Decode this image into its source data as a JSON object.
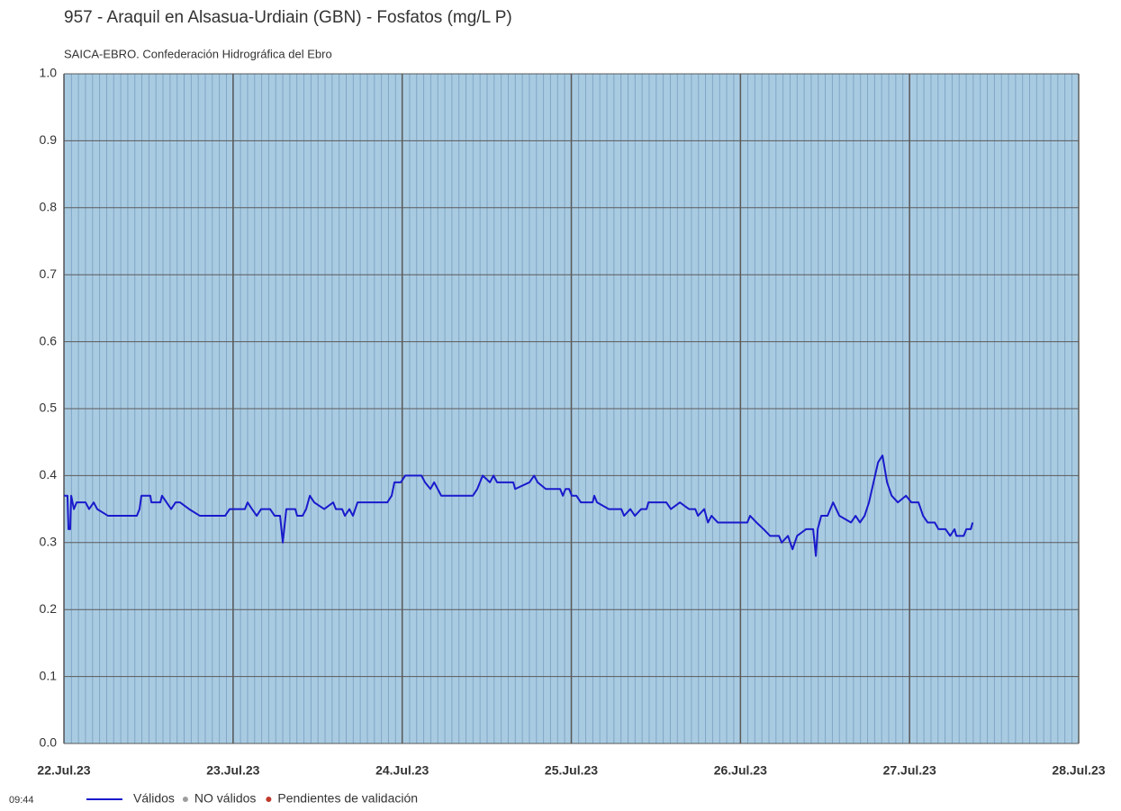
{
  "chart_data": {
    "type": "line",
    "title": "957 - Araquil en Alsasua-Urdiain (GBN) - Fosfatos (mg/L P)",
    "subtitle": "SAICA-EBRO. Confederación Hidrográfica del Ebro",
    "footer_time": "09:44",
    "x": [
      22.0,
      22.021,
      22.027,
      22.037,
      22.043,
      22.059,
      22.075,
      22.128,
      22.149,
      22.176,
      22.197,
      22.261,
      22.431,
      22.447,
      22.458,
      22.511,
      22.517,
      22.57,
      22.58,
      22.607,
      22.634,
      22.66,
      22.687,
      22.74,
      22.804,
      22.953,
      22.98,
      23.07,
      23.086,
      23.112,
      23.14,
      23.166,
      23.219,
      23.246,
      23.278,
      23.294,
      23.315,
      23.368,
      23.379,
      23.411,
      23.432,
      23.454,
      23.48,
      23.539,
      23.592,
      23.608,
      23.645,
      23.661,
      23.688,
      23.709,
      23.736,
      23.912,
      23.938,
      23.954,
      23.992,
      24.018,
      24.114,
      24.135,
      24.167,
      24.189,
      24.21,
      24.231,
      24.418,
      24.444,
      24.476,
      24.519,
      24.54,
      24.561,
      24.657,
      24.668,
      24.753,
      24.78,
      24.801,
      24.849,
      24.934,
      24.95,
      24.966,
      24.987,
      25.003,
      25.03,
      25.057,
      25.126,
      25.136,
      25.152,
      25.222,
      25.296,
      25.312,
      25.349,
      25.376,
      25.413,
      25.445,
      25.456,
      25.562,
      25.589,
      25.642,
      25.696,
      25.733,
      25.749,
      25.786,
      25.808,
      25.829,
      25.866,
      26.041,
      26.057,
      26.095,
      26.137,
      26.175,
      26.228,
      26.244,
      26.281,
      26.308,
      26.335,
      26.388,
      26.43,
      26.446,
      26.457,
      26.478,
      26.515,
      26.548,
      26.585,
      26.654,
      26.681,
      26.707,
      26.734,
      26.76,
      26.787,
      26.814,
      26.84,
      26.867,
      26.894,
      26.931,
      26.979,
      27.011,
      27.053,
      27.08,
      27.107,
      27.149,
      27.171,
      27.213,
      27.24,
      27.266,
      27.277,
      27.32,
      27.336,
      27.362,
      27.373
    ],
    "series": [
      {
        "name": "Válidos",
        "color": "#1a1acc",
        "values": [
          0.37,
          0.37,
          0.32,
          0.32,
          0.37,
          0.35,
          0.36,
          0.36,
          0.35,
          0.36,
          0.35,
          0.34,
          0.34,
          0.35,
          0.37,
          0.37,
          0.36,
          0.36,
          0.37,
          0.36,
          0.35,
          0.36,
          0.36,
          0.35,
          0.34,
          0.34,
          0.35,
          0.35,
          0.36,
          0.35,
          0.34,
          0.35,
          0.35,
          0.34,
          0.34,
          0.3,
          0.35,
          0.35,
          0.34,
          0.34,
          0.35,
          0.37,
          0.36,
          0.35,
          0.36,
          0.35,
          0.35,
          0.34,
          0.35,
          0.34,
          0.36,
          0.36,
          0.37,
          0.39,
          0.39,
          0.4,
          0.4,
          0.39,
          0.38,
          0.39,
          0.38,
          0.37,
          0.37,
          0.38,
          0.4,
          0.39,
          0.4,
          0.39,
          0.39,
          0.38,
          0.39,
          0.4,
          0.39,
          0.38,
          0.38,
          0.37,
          0.38,
          0.38,
          0.37,
          0.37,
          0.36,
          0.36,
          0.37,
          0.36,
          0.35,
          0.35,
          0.34,
          0.35,
          0.34,
          0.35,
          0.35,
          0.36,
          0.36,
          0.35,
          0.36,
          0.35,
          0.35,
          0.34,
          0.35,
          0.33,
          0.34,
          0.33,
          0.33,
          0.34,
          0.33,
          0.32,
          0.31,
          0.31,
          0.3,
          0.31,
          0.29,
          0.31,
          0.32,
          0.32,
          0.28,
          0.32,
          0.34,
          0.34,
          0.36,
          0.34,
          0.33,
          0.34,
          0.33,
          0.34,
          0.36,
          0.39,
          0.42,
          0.43,
          0.39,
          0.37,
          0.36,
          0.37,
          0.36,
          0.36,
          0.34,
          0.33,
          0.33,
          0.32,
          0.32,
          0.31,
          0.32,
          0.31,
          0.31,
          0.32,
          0.32,
          0.33
        ]
      }
    ],
    "legend_extra": [
      {
        "name": "NO válidos",
        "color": "#9e9e9e"
      },
      {
        "name": "Pendientes de validación",
        "color": "#c0392b"
      }
    ],
    "xlim": [
      22,
      28
    ],
    "xticks": [
      {
        "value": 22,
        "label": "22.Jul.23"
      },
      {
        "value": 23,
        "label": "23.Jul.23"
      },
      {
        "value": 24,
        "label": "24.Jul.23"
      },
      {
        "value": 25,
        "label": "25.Jul.23"
      },
      {
        "value": 26,
        "label": "26.Jul.23"
      },
      {
        "value": 27,
        "label": "27.Jul.23"
      },
      {
        "value": 28,
        "label": "28.Jul.23"
      }
    ],
    "ylim": [
      0,
      1
    ],
    "yticks": [
      {
        "value": 0,
        "label": "0.0"
      },
      0.1,
      0.2,
      0.3,
      0.4,
      0.5,
      0.6,
      0.7,
      0.8,
      0.9,
      {
        "value": 1,
        "label": "1.0"
      }
    ],
    "grid": true
  }
}
